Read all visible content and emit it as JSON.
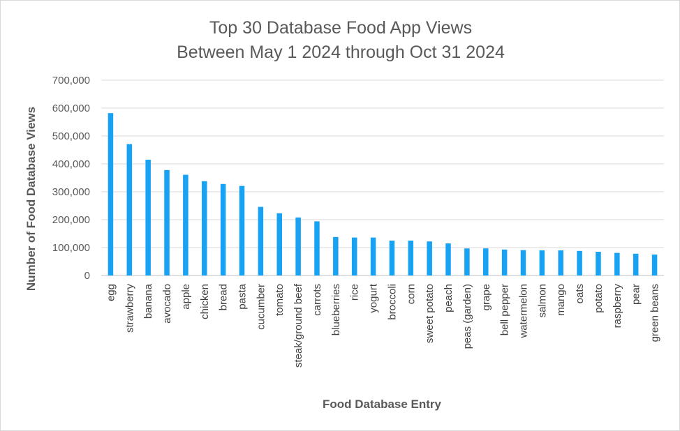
{
  "chart_data": {
    "type": "bar",
    "title": "Top 30 Database Food App Views",
    "subtitle": "Between May 1 2024 through Oct 31 2024",
    "xlabel": "Food Database Entry",
    "ylabel": "Number of Food Database Views",
    "ylim": [
      0,
      700000
    ],
    "yticks": [
      0,
      100000,
      200000,
      300000,
      400000,
      500000,
      600000,
      700000
    ],
    "ytick_labels": [
      "0",
      "100,000",
      "200,000",
      "300,000",
      "400,000",
      "500,000",
      "600,000",
      "700,000"
    ],
    "grid": true,
    "legend": "none",
    "bar_color": "#17a2f3",
    "categories": [
      "egg",
      "strawberry",
      "banana",
      "avocado",
      "apple",
      "chicken",
      "bread",
      "pasta",
      "cucumber",
      "tomato",
      "steak/ground beef",
      "carrots",
      "blueberries",
      "rice",
      "yogurt",
      "broccoli",
      "corn",
      "sweet potato",
      "peach",
      "peas (garden)",
      "grape",
      "bell pepper",
      "watermelon",
      "salmon",
      "mango",
      "oats",
      "potato",
      "raspberry",
      "pear",
      "green beans"
    ],
    "values": [
      582000,
      471000,
      415000,
      378000,
      361000,
      338000,
      328000,
      321000,
      246000,
      223000,
      208000,
      194000,
      138000,
      136000,
      136000,
      125000,
      125000,
      122000,
      115000,
      97000,
      97000,
      93000,
      91000,
      90000,
      90000,
      88000,
      85000,
      81000,
      78000,
      75000
    ]
  }
}
